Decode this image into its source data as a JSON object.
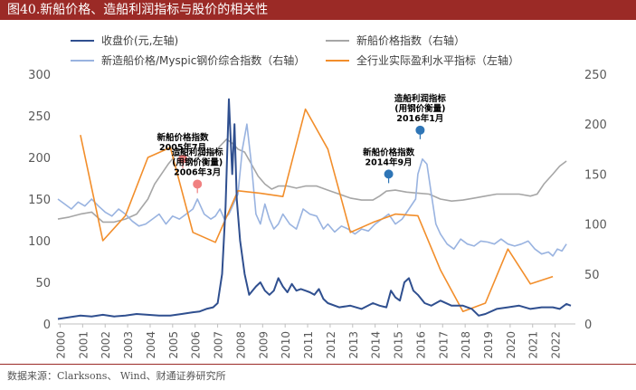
{
  "title": "图40.新船价格、造船利润指标与股价的相关性",
  "source": "数据来源：Clarksons、 Wind、财通证券研究所",
  "chart_data": {
    "type": "line",
    "left_axis": {
      "min": 0,
      "max": 300,
      "ticks": [
        0,
        50,
        100,
        150,
        200,
        250,
        300
      ]
    },
    "right_axis": {
      "min": 0,
      "max": 250,
      "ticks": [
        0,
        50,
        100,
        150,
        200,
        250
      ]
    },
    "x_labels": [
      "2000",
      "2001",
      "2002",
      "2003",
      "2004",
      "2005",
      "2006",
      "2007",
      "2008",
      "2009",
      "2010",
      "2011",
      "2012",
      "2013",
      "2014",
      "2015",
      "2016",
      "2017",
      "2018",
      "2019",
      "2020",
      "2021",
      "2022"
    ],
    "x_range": [
      2000,
      2023
    ],
    "series": [
      {
        "name": "收盘价(元,左轴)",
        "axis": "left",
        "color": "#2f4f8f",
        "x": [
          2000.0,
          2000.5,
          2001.0,
          2001.5,
          2002.0,
          2002.5,
          2003.0,
          2003.5,
          2004.0,
          2004.5,
          2005.0,
          2005.5,
          2006.0,
          2006.3,
          2006.6,
          2006.9,
          2007.1,
          2007.3,
          2007.45,
          2007.6,
          2007.75,
          2007.85,
          2007.95,
          2008.1,
          2008.3,
          2008.5,
          2008.8,
          2009.0,
          2009.2,
          2009.4,
          2009.6,
          2009.8,
          2010.0,
          2010.2,
          2010.4,
          2010.6,
          2010.8,
          2011.0,
          2011.2,
          2011.4,
          2011.6,
          2011.8,
          2012.0,
          2012.5,
          2013.0,
          2013.5,
          2014.0,
          2014.3,
          2014.6,
          2014.8,
          2015.0,
          2015.2,
          2015.4,
          2015.6,
          2015.8,
          2016.0,
          2016.3,
          2016.6,
          2017.0,
          2017.5,
          2018.0,
          2018.4,
          2018.7,
          2019.0,
          2019.5,
          2020.0,
          2020.5,
          2021.0,
          2021.5,
          2022.0,
          2022.3,
          2022.6,
          2022.8
        ],
        "values": [
          6,
          8,
          10,
          9,
          11,
          9,
          10,
          12,
          11,
          10,
          10,
          12,
          14,
          15,
          18,
          20,
          25,
          60,
          140,
          270,
          180,
          240,
          150,
          100,
          60,
          35,
          45,
          50,
          40,
          35,
          40,
          55,
          45,
          38,
          48,
          40,
          42,
          40,
          38,
          35,
          42,
          30,
          25,
          20,
          22,
          18,
          25,
          22,
          20,
          40,
          32,
          28,
          50,
          55,
          40,
          35,
          25,
          22,
          28,
          22,
          22,
          18,
          10,
          12,
          18,
          20,
          22,
          18,
          20,
          20,
          18,
          24,
          22
        ]
      },
      {
        "name": "新船价格指数（右轴）",
        "axis": "right",
        "color": "#a6a6a6",
        "x": [
          2000.0,
          2000.5,
          2001.0,
          2001.5,
          2002.0,
          2002.5,
          2003.0,
          2003.5,
          2004.0,
          2004.3,
          2004.6,
          2004.9,
          2005.2,
          2005.5,
          2005.8,
          2006.0,
          2006.3,
          2006.6,
          2006.9,
          2007.2,
          2007.5,
          2007.8,
          2008.0,
          2008.3,
          2008.6,
          2008.9,
          2009.2,
          2009.5,
          2009.8,
          2010.2,
          2010.6,
          2011.0,
          2011.5,
          2012.0,
          2012.5,
          2013.0,
          2013.5,
          2014.0,
          2014.3,
          2014.6,
          2015.0,
          2015.5,
          2016.0,
          2016.5,
          2017.0,
          2017.5,
          2018.0,
          2018.5,
          2019.0,
          2019.5,
          2020.0,
          2020.5,
          2021.0,
          2021.3,
          2021.6,
          2022.0,
          2022.3,
          2022.6
        ],
        "values": [
          105,
          107,
          110,
          112,
          102,
          102,
          105,
          110,
          125,
          140,
          150,
          160,
          168,
          172,
          168,
          163,
          168,
          172,
          170,
          178,
          185,
          180,
          175,
          172,
          160,
          148,
          140,
          135,
          138,
          138,
          136,
          138,
          138,
          134,
          130,
          126,
          124,
          124,
          128,
          133,
          134,
          132,
          131,
          130,
          125,
          123,
          124,
          126,
          128,
          130,
          130,
          130,
          128,
          130,
          140,
          150,
          158,
          163
        ]
      },
      {
        "name": "新造船价格/Myspic钢价综合指数（右轴）",
        "axis": "right",
        "color": "#99b3e0",
        "x": [
          2000.0,
          2000.3,
          2000.6,
          2000.9,
          2001.2,
          2001.5,
          2001.8,
          2002.1,
          2002.4,
          2002.7,
          2003.0,
          2003.3,
          2003.6,
          2003.9,
          2004.2,
          2004.5,
          2004.8,
          2005.1,
          2005.4,
          2005.7,
          2006.0,
          2006.2,
          2006.5,
          2006.8,
          2007.0,
          2007.2,
          2007.4,
          2007.6,
          2007.8,
          2008.0,
          2008.2,
          2008.4,
          2008.6,
          2008.8,
          2009.0,
          2009.2,
          2009.4,
          2009.6,
          2009.8,
          2010.0,
          2010.3,
          2010.6,
          2010.9,
          2011.2,
          2011.5,
          2011.8,
          2012.0,
          2012.3,
          2012.6,
          2012.9,
          2013.2,
          2013.5,
          2013.8,
          2014.1,
          2014.4,
          2014.7,
          2015.0,
          2015.3,
          2015.6,
          2015.9,
          2016.0,
          2016.2,
          2016.4,
          2016.6,
          2016.8,
          2017.0,
          2017.3,
          2017.6,
          2017.9,
          2018.2,
          2018.5,
          2018.8,
          2019.1,
          2019.4,
          2019.7,
          2020.0,
          2020.3,
          2020.6,
          2020.9,
          2021.2,
          2021.5,
          2021.8,
          2022.0,
          2022.2,
          2022.4,
          2022.6
        ],
        "values": [
          125,
          120,
          115,
          122,
          118,
          125,
          118,
          112,
          108,
          115,
          110,
          103,
          98,
          100,
          105,
          110,
          100,
          108,
          105,
          110,
          115,
          125,
          110,
          105,
          108,
          115,
          105,
          110,
          120,
          130,
          175,
          200,
          160,
          110,
          100,
          120,
          105,
          95,
          100,
          110,
          100,
          95,
          115,
          110,
          108,
          95,
          100,
          92,
          98,
          95,
          90,
          95,
          93,
          100,
          105,
          110,
          100,
          105,
          115,
          125,
          150,
          165,
          160,
          130,
          100,
          90,
          80,
          75,
          85,
          80,
          78,
          83,
          82,
          80,
          85,
          80,
          78,
          80,
          83,
          75,
          70,
          72,
          68,
          75,
          73,
          80
        ]
      },
      {
        "name": "全行业实际盈利水平指标（左轴）",
        "axis": "left",
        "color": "#f28e2b",
        "x": [
          2001,
          2002,
          2003,
          2004,
          2005,
          2006,
          2007,
          2008,
          2009,
          2010,
          2011,
          2012,
          2013,
          2014,
          2015,
          2016,
          2017,
          2018,
          2019,
          2020,
          2021,
          2022
        ],
        "values": [
          227,
          100,
          130,
          200,
          212,
          110,
          98,
          160,
          157,
          153,
          258,
          210,
          110,
          122,
          132,
          130,
          65,
          15,
          25,
          90,
          48,
          57
        ]
      }
    ],
    "annotations": [
      {
        "text": "新船价格指数\n2005年7月",
        "x": 2005.55,
        "y": 165,
        "axis": "right",
        "color": "#f08080"
      },
      {
        "text": "造船利润指标\n(用钢价衡量)\n2006年3月",
        "x": 2006.2,
        "y": 140,
        "axis": "right",
        "color": "#f08080"
      },
      {
        "text": "新船价格指数\n2014年9月",
        "x": 2014.7,
        "y": 150,
        "axis": "right",
        "color": "#2e75b6"
      },
      {
        "text": "造船利润指标\n(用钢价衡量)\n2016年1月",
        "x": 2016.1,
        "y": 194,
        "axis": "right",
        "color": "#2e75b6"
      }
    ]
  }
}
